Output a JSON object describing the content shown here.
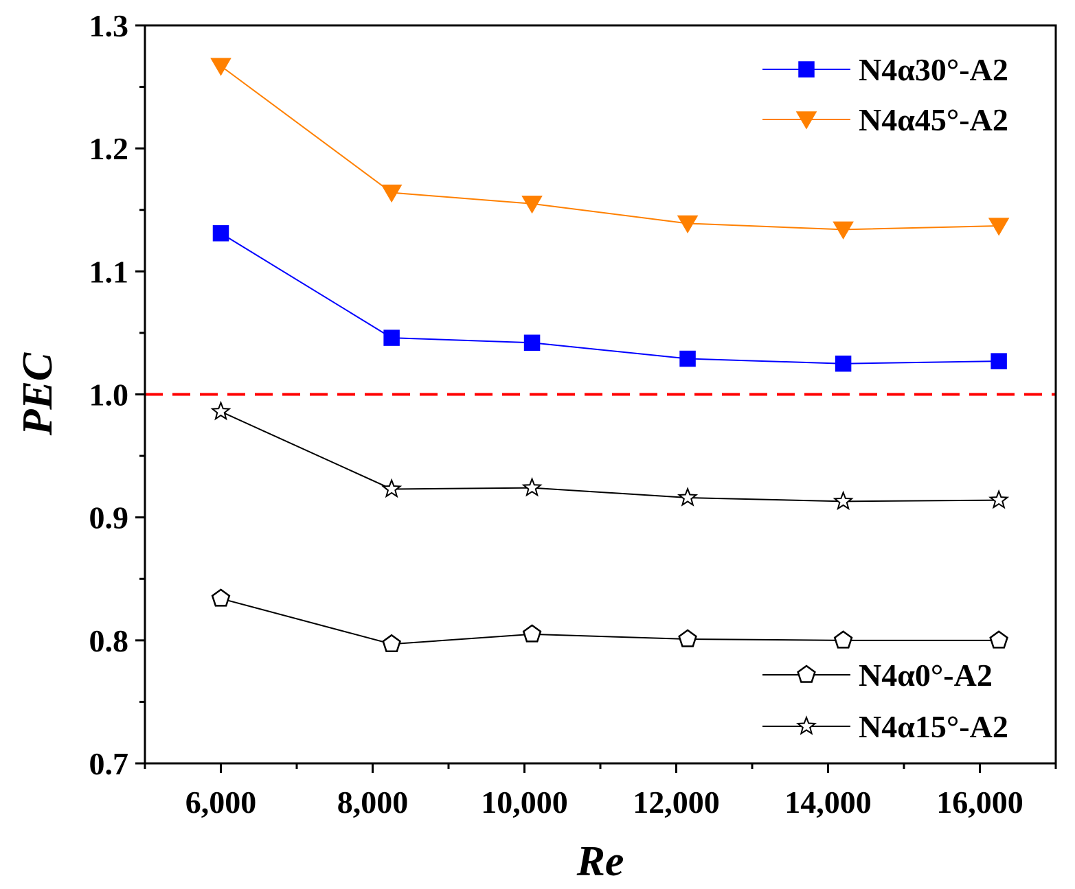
{
  "chart_data": {
    "type": "line",
    "xlabel": "Re",
    "ylabel": "PEC",
    "xlim": [
      5000,
      17000
    ],
    "ylim": [
      0.7,
      1.3
    ],
    "xticks": [
      6000,
      8000,
      10000,
      12000,
      14000,
      16000
    ],
    "xtick_labels": [
      "6,000",
      "8,000",
      "10,000",
      "12,000",
      "14,000",
      "16,000"
    ],
    "yticks": [
      0.7,
      0.8,
      0.9,
      1.0,
      1.1,
      1.2,
      1.3
    ],
    "ytick_labels": [
      "0.7",
      "0.8",
      "0.9",
      "1.0",
      "1.1",
      "1.2",
      "1.3"
    ],
    "reference_line": {
      "y": 1.0,
      "style": "dashed",
      "color": "#ff0000"
    },
    "legends": [
      {
        "placement": "top-right",
        "entries": [
          "N4α30°-A2",
          "N4α45°-A2"
        ]
      },
      {
        "placement": "bottom-right",
        "entries": [
          "N4α0°-A2",
          "N4α15°-A2"
        ]
      }
    ],
    "series": [
      {
        "name": "N4α30°-A2",
        "color": "#0000ff",
        "marker": "square",
        "filled": true,
        "x": [
          6000,
          8250,
          10100,
          12150,
          14200,
          16250
        ],
        "values": [
          1.131,
          1.046,
          1.042,
          1.029,
          1.025,
          1.027
        ]
      },
      {
        "name": "N4α45°-A2",
        "color": "#ff8000",
        "marker": "triangle-down",
        "filled": true,
        "x": [
          6000,
          8250,
          10100,
          12150,
          14200,
          16250
        ],
        "values": [
          1.267,
          1.164,
          1.155,
          1.139,
          1.134,
          1.137
        ]
      },
      {
        "name": "N4α0°-A2",
        "color": "#000000",
        "marker": "pentagon",
        "filled": false,
        "x": [
          6000,
          8250,
          10100,
          12150,
          14200,
          16250
        ],
        "values": [
          0.834,
          0.797,
          0.805,
          0.801,
          0.8,
          0.8
        ]
      },
      {
        "name": "N4α15°-A2",
        "color": "#000000",
        "marker": "star",
        "filled": false,
        "x": [
          6000,
          8250,
          10100,
          12150,
          14200,
          16250
        ],
        "values": [
          0.986,
          0.923,
          0.924,
          0.916,
          0.913,
          0.914
        ]
      }
    ]
  }
}
